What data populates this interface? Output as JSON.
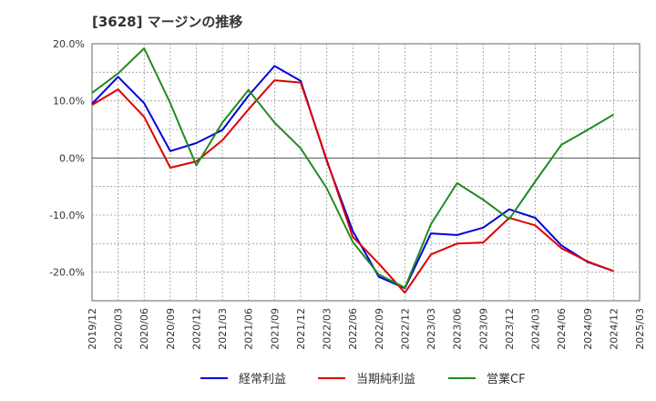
{
  "title": "[3628]  マージンの推移",
  "chart_data": {
    "type": "line",
    "x": [
      "2019/12",
      "2020/03",
      "2020/06",
      "2020/09",
      "2020/12",
      "2021/03",
      "2021/06",
      "2021/09",
      "2021/12",
      "2022/03",
      "2022/06",
      "2022/09",
      "2022/12",
      "2023/03",
      "2023/06",
      "2023/09",
      "2023/12",
      "2024/03",
      "2024/06",
      "2024/09",
      "2024/12"
    ],
    "x_ticks": [
      "2019/12",
      "2020/03",
      "2020/06",
      "2020/09",
      "2020/12",
      "2021/03",
      "2021/06",
      "2021/09",
      "2021/12",
      "2022/03",
      "2022/06",
      "2022/09",
      "2022/12",
      "2023/03",
      "2023/06",
      "2023/09",
      "2023/12",
      "2024/03",
      "2024/06",
      "2024/09",
      "2024/12",
      "2025/03"
    ],
    "ylim": [
      -25,
      20
    ],
    "y_ticks": [
      20,
      10,
      0,
      -10,
      -20
    ],
    "y_tick_labels": [
      "20.0%",
      "10.0%",
      "0.0%",
      "-10.0%",
      "-20.0%"
    ],
    "grid": true,
    "legend_position": "bottom",
    "series": [
      {
        "name": "経常利益",
        "color": "#0000dd",
        "values": [
          9.5,
          14.2,
          9.6,
          1.2,
          2.6,
          4.9,
          10.9,
          16.1,
          13.5,
          -0.5,
          -12.8,
          -20.8,
          -22.8,
          -13.2,
          -13.5,
          -12.2,
          -9.0,
          -10.5,
          -15.3,
          -18.2,
          -19.8
        ]
      },
      {
        "name": "当期純利益",
        "color": "#dd0000",
        "values": [
          9.3,
          12.0,
          7.2,
          -1.7,
          -0.6,
          3.1,
          8.5,
          13.6,
          13.2,
          -0.3,
          -13.8,
          -18.5,
          -23.6,
          -16.9,
          -15.0,
          -14.8,
          -10.5,
          -11.8,
          -15.8,
          -18.1,
          -19.8
        ]
      },
      {
        "name": "営業CF",
        "color": "#228b22",
        "values": [
          11.4,
          14.8,
          19.2,
          9.6,
          -1.3,
          6.2,
          11.9,
          6.2,
          1.7,
          -5.3,
          -14.7,
          -20.4,
          -22.7,
          -11.6,
          -4.4,
          -7.3,
          -10.7,
          -4.1,
          2.3,
          4.9,
          7.6
        ]
      }
    ]
  }
}
